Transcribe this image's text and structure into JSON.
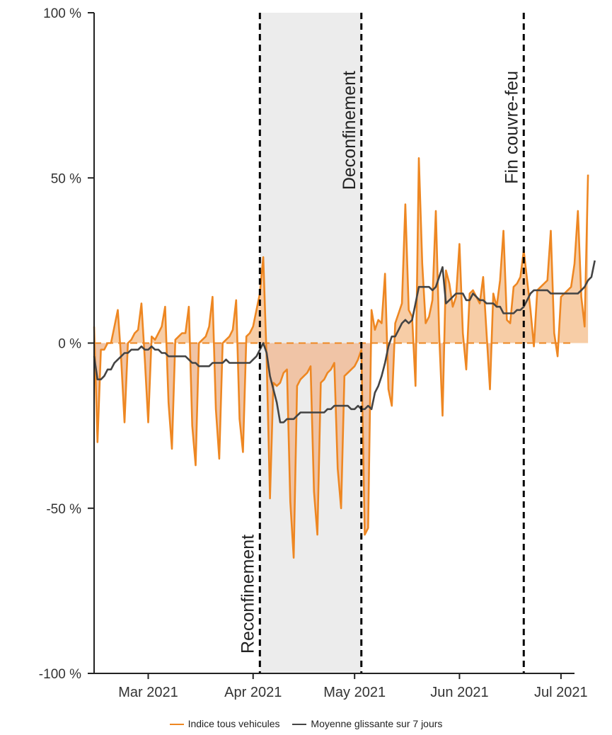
{
  "chart_data": {
    "type": "line",
    "x_axis": {
      "type": "date",
      "range": [
        "2021-02-13",
        "2021-07-05"
      ],
      "ticks": [
        {
          "date": "2021-03-01",
          "label": "Mar 2021"
        },
        {
          "date": "2021-04-01",
          "label": "Apr 2021"
        },
        {
          "date": "2021-05-01",
          "label": "May 2021"
        },
        {
          "date": "2021-06-01",
          "label": "Jun 2021"
        },
        {
          "date": "2021-07-01",
          "label": "Jul 2021"
        }
      ]
    },
    "y_axis": {
      "range": [
        -100,
        100
      ],
      "unit": "%",
      "ticks": [
        {
          "value": 100,
          "label": "100 %"
        },
        {
          "value": 50,
          "label": "50 %"
        },
        {
          "value": 0,
          "label": "0 %"
        },
        {
          "value": -50,
          "label": "-50 %"
        },
        {
          "value": -100,
          "label": "-100 %"
        }
      ]
    },
    "reference_line": {
      "value": 0,
      "style": "dashed"
    },
    "shaded_period": {
      "start": "2021-04-03",
      "end": "2021-05-03"
    },
    "events": [
      {
        "date": "2021-04-03",
        "label": "Reconfinement",
        "label_position": "bottom"
      },
      {
        "date": "2021-05-03",
        "label": "Deconfinement",
        "label_position": "top"
      },
      {
        "date": "2021-06-20",
        "label": "Fin couvre-feu",
        "label_position": "top"
      }
    ],
    "series": [
      {
        "name": "Indice tous vehicules",
        "color": "#ee8722",
        "fill": "area-to-zero",
        "x_start": "2021-02-13",
        "y": [
          5,
          -30,
          -2,
          -2,
          0,
          0,
          5,
          10,
          -5,
          -24,
          0,
          1,
          3,
          4,
          12,
          -5,
          -24,
          2,
          1,
          3,
          5,
          11,
          -18,
          -32,
          1,
          2,
          3,
          3,
          11,
          -25,
          -37,
          0,
          1,
          2,
          5,
          14,
          -20,
          -35,
          0,
          1,
          2,
          4,
          13,
          -23,
          -33,
          2,
          3,
          5,
          10,
          15,
          26,
          -5,
          -47,
          -12,
          -13,
          -12,
          -9,
          -8,
          -48,
          -65,
          -13,
          -11,
          -10,
          -9,
          -7,
          -45,
          -58,
          -12,
          -11,
          -9,
          -8,
          -6,
          -38,
          -50,
          -10,
          -9,
          -8,
          -7,
          -5,
          -2,
          -58,
          -56,
          10,
          4,
          7,
          6,
          21,
          -14,
          -19,
          6,
          9,
          12,
          42,
          10,
          8,
          -13,
          56,
          24,
          6,
          8,
          13,
          40,
          3,
          -22,
          22,
          18,
          11,
          14,
          30,
          3,
          -8,
          15,
          16,
          14,
          12,
          20,
          3,
          -14,
          15,
          11,
          19,
          34,
          7,
          6,
          17,
          18,
          20,
          28,
          19,
          10,
          -1,
          16,
          17,
          18,
          19,
          34,
          3,
          -4,
          14,
          15,
          16,
          17,
          24,
          40,
          14,
          5,
          51
        ]
      },
      {
        "name": "Moyenne glissante sur 7 jours",
        "color": "#444444",
        "x_start": "2021-02-13",
        "y": [
          -4,
          -11,
          -11,
          -10,
          -8,
          -8,
          -6,
          -5,
          -4,
          -3,
          -3,
          -2,
          -2,
          -2,
          -1,
          -2,
          -2,
          -1,
          -2,
          -2,
          -3,
          -3,
          -4,
          -4,
          -4,
          -4,
          -4,
          -4,
          -5,
          -6,
          -6,
          -7,
          -7,
          -7,
          -7,
          -6,
          -6,
          -6,
          -6,
          -5,
          -6,
          -6,
          -6,
          -6,
          -6,
          -6,
          -6,
          -5,
          -4,
          -2,
          0,
          -3,
          -10,
          -14,
          -18,
          -24,
          -24,
          -23,
          -23,
          -23,
          -22,
          -21,
          -21,
          -21,
          -21,
          -21,
          -21,
          -21,
          -21,
          -20,
          -20,
          -19,
          -19,
          -19,
          -19,
          -19,
          -20,
          -20,
          -19,
          -20,
          -20,
          -19,
          -20,
          -15,
          -13,
          -10,
          -6,
          -1,
          2,
          2,
          4,
          6,
          7,
          6,
          7,
          12,
          17,
          17,
          17,
          17,
          16,
          17,
          20,
          23,
          12,
          13,
          14,
          15,
          15,
          15,
          13,
          13,
          15,
          14,
          13,
          13,
          12,
          12,
          12,
          11,
          11,
          9,
          9,
          9,
          9,
          10,
          10,
          11,
          13,
          15,
          16,
          16,
          16,
          16,
          16,
          15,
          15,
          15,
          15,
          15,
          15,
          15,
          15,
          15,
          16,
          17,
          19,
          20,
          25
        ]
      }
    ],
    "legend": {
      "position": "bottom"
    }
  }
}
